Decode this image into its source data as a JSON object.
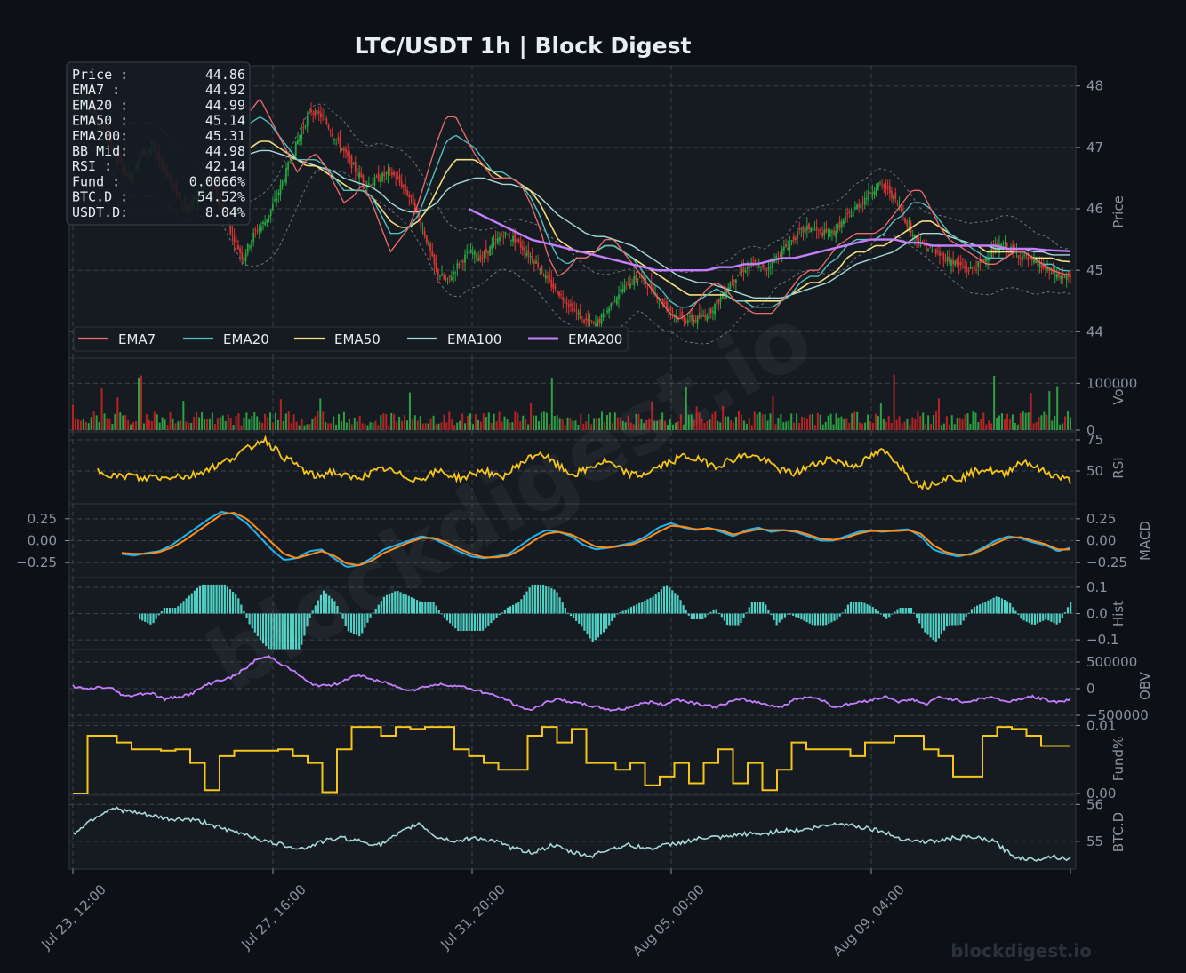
{
  "title": "LTC/USDT  1h  |  Block Digest",
  "watermark": "blockdigest.io",
  "info_box": [
    {
      "label": "Price :",
      "value": "44.86"
    },
    {
      "label": "EMA7  :",
      "value": "44.92"
    },
    {
      "label": "EMA20 :",
      "value": "44.99"
    },
    {
      "label": "EMA50 :",
      "value": "45.14"
    },
    {
      "label": "EMA200:",
      "value": "45.31"
    },
    {
      "label": "BB Mid:",
      "value": "44.98"
    },
    {
      "label": "RSI   :",
      "value": "42.14"
    },
    {
      "label": "Fund  :",
      "value": "0.0066%"
    },
    {
      "label": "BTC.D :",
      "value": "54.52%"
    },
    {
      "label": "USDT.D:",
      "value": "8.04%"
    }
  ],
  "colors": {
    "background": "#0d1117",
    "panel": "#161b22",
    "grid": "#30363d",
    "up": "#26a641",
    "down": "#da3633",
    "ema7": "#f26b6b",
    "ema20": "#4fc1c1",
    "ema50": "#f5e07a",
    "ema100": "#a8d8d8",
    "ema200": "#c77dff",
    "rsi": "#f5c518",
    "macd": "#1fb3f0",
    "signal": "#ff8c1a",
    "hist": "#4fd1c5",
    "obv": "#c77dff",
    "fund": "#f5c518",
    "btcd": "#a8d8d8"
  },
  "chart_data": {
    "type": "line",
    "x_ticks": [
      "Jul 23, 12:00",
      "Jul 27, 16:00",
      "Jul 31, 20:00",
      "Aug 05, 00:00",
      "Aug 09, 04:00"
    ],
    "panels": [
      {
        "id": "price",
        "ylabel": "Price",
        "ylim": [
          43.6,
          48.3
        ],
        "yticks": [
          "44",
          "45",
          "46",
          "47",
          "48"
        ],
        "ytick_values": [
          44,
          45,
          46,
          47,
          48
        ],
        "legend": [
          "EMA7",
          "EMA20",
          "EMA50",
          "EMA100",
          "EMA200"
        ],
        "legend_position": "bottom-left",
        "series_close": [
          47.7,
          47.9,
          47.5,
          47.2,
          46.8,
          46.5,
          46.9,
          47.0,
          46.7,
          46.3,
          46.0,
          46.2,
          46.5,
          46.1,
          45.6,
          45.2,
          45.6,
          45.8,
          46.2,
          46.7,
          47.2,
          47.6,
          47.5,
          47.2,
          46.9,
          46.6,
          46.4,
          46.5,
          46.6,
          46.4,
          46.1,
          45.6,
          45.0,
          44.8,
          45.1,
          45.3,
          45.2,
          45.4,
          45.6,
          45.5,
          45.3,
          45.1,
          44.8,
          44.6,
          44.4,
          44.2,
          44.1,
          44.3,
          44.6,
          44.8,
          44.9,
          44.7,
          44.5,
          44.3,
          44.2,
          44.2,
          44.3,
          44.5,
          44.8,
          45.0,
          45.1,
          45.0,
          45.2,
          45.4,
          45.6,
          45.7,
          45.6,
          45.6,
          45.8,
          46.0,
          46.2,
          46.4,
          46.3,
          46.0,
          45.6,
          45.4,
          45.3,
          45.2,
          45.1,
          45.0,
          45.1,
          45.3,
          45.4,
          45.3,
          45.2,
          45.1,
          45.0,
          44.9,
          44.86
        ],
        "ema7": [
          47.6,
          47.8,
          47.5,
          47.2,
          46.9,
          46.6,
          46.8,
          46.9,
          46.7,
          46.4,
          46.1,
          46.2,
          46.4,
          46.1,
          45.7,
          45.3,
          45.5,
          45.7,
          46.1,
          46.6,
          47.1,
          47.5,
          47.5,
          47.2,
          46.9,
          46.7,
          46.5,
          46.5,
          46.5,
          46.4,
          46.1,
          45.7,
          45.2,
          44.9,
          45.0,
          45.2,
          45.2,
          45.3,
          45.5,
          45.5,
          45.3,
          45.1,
          44.9,
          44.7,
          44.5,
          44.3,
          44.2,
          44.3,
          44.5,
          44.7,
          44.8,
          44.7,
          44.5,
          44.4,
          44.3,
          44.3,
          44.3,
          44.5,
          44.7,
          44.9,
          45.0,
          45.0,
          45.2,
          45.4,
          45.5,
          45.6,
          45.6,
          45.6,
          45.7,
          45.9,
          46.1,
          46.3,
          46.3,
          46.0,
          45.7,
          45.5,
          45.4,
          45.3,
          45.2,
          45.1,
          45.1,
          45.2,
          45.3,
          45.3,
          45.2,
          45.1,
          45.0,
          44.95,
          44.92
        ],
        "ema20": [
          47.4,
          47.5,
          47.4,
          47.2,
          47.0,
          46.8,
          46.8,
          46.8,
          46.7,
          46.5,
          46.3,
          46.3,
          46.3,
          46.2,
          45.9,
          45.6,
          45.6,
          45.7,
          45.9,
          46.3,
          46.7,
          47.1,
          47.2,
          47.1,
          47.0,
          46.8,
          46.6,
          46.6,
          46.5,
          46.4,
          46.2,
          45.9,
          45.5,
          45.2,
          45.1,
          45.2,
          45.2,
          45.3,
          45.4,
          45.4,
          45.3,
          45.2,
          45.0,
          44.8,
          44.7,
          44.5,
          44.4,
          44.4,
          44.5,
          44.6,
          44.7,
          44.6,
          44.5,
          44.5,
          44.4,
          44.4,
          44.4,
          44.5,
          44.6,
          44.8,
          44.9,
          44.9,
          45.1,
          45.2,
          45.4,
          45.5,
          45.5,
          45.5,
          45.6,
          45.8,
          45.9,
          46.1,
          46.1,
          46.0,
          45.8,
          45.6,
          45.5,
          45.4,
          45.3,
          45.2,
          45.2,
          45.2,
          45.3,
          45.3,
          45.2,
          45.1,
          45.1,
          45.0,
          44.99
        ],
        "ema50": [
          47.0,
          47.1,
          47.1,
          47.0,
          46.9,
          46.8,
          46.7,
          46.7,
          46.6,
          46.5,
          46.4,
          46.3,
          46.3,
          46.2,
          46.0,
          45.8,
          45.7,
          45.7,
          45.8,
          46.0,
          46.3,
          46.6,
          46.8,
          46.8,
          46.8,
          46.7,
          46.6,
          46.5,
          46.5,
          46.4,
          46.3,
          46.1,
          45.8,
          45.5,
          45.4,
          45.3,
          45.3,
          45.3,
          45.4,
          45.4,
          45.3,
          45.2,
          45.1,
          45.0,
          44.9,
          44.8,
          44.7,
          44.6,
          44.6,
          44.6,
          44.6,
          44.6,
          44.5,
          44.5,
          44.5,
          44.5,
          44.5,
          44.5,
          44.6,
          44.7,
          44.8,
          44.8,
          44.9,
          45.0,
          45.2,
          45.3,
          45.3,
          45.4,
          45.4,
          45.5,
          45.6,
          45.7,
          45.8,
          45.8,
          45.7,
          45.6,
          45.5,
          45.4,
          45.4,
          45.3,
          45.3,
          45.3,
          45.3,
          45.3,
          45.2,
          45.2,
          45.2,
          45.15,
          45.14
        ],
        "ema100": [
          46.9,
          46.95,
          46.95,
          46.9,
          46.85,
          46.8,
          46.75,
          46.7,
          46.65,
          46.6,
          46.5,
          46.45,
          46.4,
          46.35,
          46.25,
          46.1,
          46.0,
          45.95,
          45.95,
          46.0,
          46.1,
          46.3,
          46.4,
          46.45,
          46.5,
          46.5,
          46.45,
          46.4,
          46.4,
          46.35,
          46.3,
          46.2,
          46.05,
          45.9,
          45.8,
          45.7,
          45.6,
          45.55,
          45.55,
          45.5,
          45.45,
          45.4,
          45.3,
          45.2,
          45.1,
          45.0,
          44.9,
          44.85,
          44.8,
          44.8,
          44.75,
          44.7,
          44.65,
          44.6,
          44.55,
          44.55,
          44.55,
          44.55,
          44.6,
          44.65,
          44.7,
          44.75,
          44.8,
          44.9,
          45.0,
          45.1,
          45.15,
          45.2,
          45.25,
          45.3,
          45.4,
          45.5,
          45.6,
          45.6,
          45.6,
          45.55,
          45.5,
          45.45,
          45.4,
          45.4,
          45.35,
          45.35,
          45.35,
          45.35,
          45.3,
          45.3,
          45.25,
          45.25,
          45.25
        ],
        "ema200_start_index": 40,
        "ema200": [
          46.0,
          45.9,
          45.8,
          45.7,
          45.6,
          45.5,
          45.45,
          45.4,
          45.35,
          45.3,
          45.25,
          45.2,
          45.15,
          45.1,
          45.05,
          45.0,
          45.0,
          45.0,
          45.0,
          45.0,
          45.05,
          45.05,
          45.1,
          45.1,
          45.15,
          45.2,
          45.2,
          45.25,
          45.3,
          45.35,
          45.4,
          45.45,
          45.5,
          45.5,
          45.5,
          45.45,
          45.45,
          45.4,
          45.4,
          45.4,
          45.4,
          45.4,
          45.4,
          45.35,
          45.35,
          45.35,
          45.33,
          45.32,
          45.31
        ]
      },
      {
        "id": "volume",
        "ylabel": "Vol",
        "ylim": [
          0,
          150000
        ],
        "yticks": [
          "0",
          "100000"
        ],
        "ytick_values": [
          0,
          100000
        ]
      },
      {
        "id": "rsi",
        "ylabel": "RSI",
        "ylim": [
          25,
          80
        ],
        "yticks": [
          "50",
          "75"
        ],
        "ytick_values": [
          50,
          75
        ],
        "values": [
          50,
          48,
          45,
          47,
          43,
          46,
          44,
          47,
          45,
          48,
          52,
          55,
          60,
          65,
          70,
          76,
          68,
          60,
          55,
          48,
          45,
          50,
          47,
          44,
          46,
          49,
          52,
          48,
          45,
          43,
          47,
          50,
          46,
          44,
          48,
          51,
          45,
          47,
          55,
          60,
          65,
          58,
          52,
          47,
          50,
          55,
          58,
          52,
          48,
          46,
          50,
          54,
          58,
          62,
          60,
          57,
          54,
          58,
          61,
          63,
          60,
          55,
          50,
          48,
          52,
          56,
          60,
          58,
          54,
          56,
          62,
          66,
          60,
          50,
          40,
          38,
          42,
          45,
          44,
          48,
          52,
          50,
          47,
          55,
          58,
          52,
          48,
          45,
          42
        ]
      },
      {
        "id": "macd",
        "ylabel": "MACD",
        "ylim": [
          -0.4,
          0.4
        ],
        "yticks": [
          "−0.25",
          "0.00",
          "0.25"
        ],
        "ytick_values": [
          -0.25,
          0,
          0.25
        ],
        "macd": [
          -0.15,
          -0.17,
          -0.14,
          -0.12,
          -0.05,
          0.05,
          0.15,
          0.25,
          0.33,
          0.3,
          0.2,
          0.05,
          -0.1,
          -0.22,
          -0.2,
          -0.12,
          -0.1,
          -0.2,
          -0.3,
          -0.28,
          -0.2,
          -0.1,
          -0.05,
          0.0,
          0.05,
          0.02,
          -0.05,
          -0.12,
          -0.18,
          -0.2,
          -0.18,
          -0.15,
          -0.05,
          0.05,
          0.12,
          0.1,
          0.05,
          -0.05,
          -0.1,
          -0.08,
          -0.05,
          -0.02,
          0.05,
          0.15,
          0.2,
          0.15,
          0.12,
          0.15,
          0.1,
          0.05,
          0.12,
          0.15,
          0.1,
          0.12,
          0.1,
          0.05,
          0.0,
          0.0,
          0.05,
          0.1,
          0.12,
          0.1,
          0.12,
          0.13,
          0.05,
          -0.1,
          -0.15,
          -0.18,
          -0.15,
          -0.08,
          0.0,
          0.05,
          0.03,
          -0.02,
          -0.05,
          -0.12,
          -0.08
        ],
        "signal": [
          -0.14,
          -0.15,
          -0.15,
          -0.13,
          -0.08,
          0.0,
          0.1,
          0.2,
          0.3,
          0.32,
          0.25,
          0.12,
          -0.02,
          -0.15,
          -0.2,
          -0.16,
          -0.12,
          -0.17,
          -0.26,
          -0.28,
          -0.23,
          -0.14,
          -0.08,
          -0.02,
          0.03,
          0.03,
          -0.02,
          -0.09,
          -0.15,
          -0.19,
          -0.19,
          -0.17,
          -0.1,
          0.0,
          0.08,
          0.1,
          0.07,
          0.0,
          -0.07,
          -0.08,
          -0.06,
          -0.04,
          0.02,
          0.1,
          0.17,
          0.16,
          0.13,
          0.14,
          0.12,
          0.07,
          0.1,
          0.13,
          0.12,
          0.12,
          0.11,
          0.07,
          0.02,
          0.01,
          0.03,
          0.08,
          0.11,
          0.11,
          0.11,
          0.12,
          0.08,
          -0.05,
          -0.13,
          -0.16,
          -0.16,
          -0.1,
          -0.03,
          0.03,
          0.04,
          0.0,
          -0.04,
          -0.1,
          -0.1
        ]
      },
      {
        "id": "hist",
        "ylabel": "Hist",
        "ylim": [
          -0.13,
          0.13
        ],
        "yticks": [
          "−0.1",
          "0.0",
          "0.1"
        ],
        "ytick_values": [
          -0.1,
          0,
          0.1
        ]
      },
      {
        "id": "obv",
        "ylabel": "OBV",
        "ylim": [
          -600000,
          700000
        ],
        "yticks": [
          "−500000",
          "0",
          "500000"
        ],
        "ytick_values": [
          -500000,
          0,
          500000
        ],
        "values": [
          50000,
          -20000,
          30000,
          0,
          -150000,
          -100000,
          -80000,
          -200000,
          -150000,
          -100000,
          50000,
          150000,
          200000,
          350000,
          550000,
          600000,
          450000,
          300000,
          100000,
          50000,
          80000,
          200000,
          250000,
          150000,
          100000,
          0,
          -20000,
          50000,
          80000,
          60000,
          20000,
          -50000,
          -120000,
          -200000,
          -350000,
          -400000,
          -250000,
          -200000,
          -250000,
          -300000,
          -350000,
          -400000,
          -380000,
          -300000,
          -250000,
          -300000,
          -200000,
          -250000,
          -300000,
          -350000,
          -250000,
          -200000,
          -250000,
          -300000,
          -350000,
          -200000,
          -150000,
          -200000,
          -350000,
          -300000,
          -250000,
          -200000,
          -150000,
          -250000,
          -200000,
          -300000,
          -150000,
          -200000,
          -250000,
          -200000,
          -150000,
          -250000,
          -200000,
          -150000,
          -200000,
          -250000,
          -200000
        ]
      },
      {
        "id": "fund",
        "ylabel": "Fund%",
        "ylim": [
          0,
          0.0102
        ],
        "yticks": [
          "0.00",
          "0.01"
        ],
        "ytick_values": [
          0,
          0.01
        ],
        "values": [
          0.0,
          0.0085,
          0.0085,
          0.0075,
          0.0065,
          0.0065,
          0.0063,
          0.0065,
          0.0045,
          0.0005,
          0.0055,
          0.0063,
          0.0063,
          0.0063,
          0.0065,
          0.0055,
          0.0045,
          0.0002,
          0.0065,
          0.0098,
          0.0098,
          0.0085,
          0.0098,
          0.0095,
          0.0098,
          0.0098,
          0.0065,
          0.0055,
          0.0045,
          0.0035,
          0.0035,
          0.0085,
          0.0098,
          0.0075,
          0.0095,
          0.0045,
          0.0045,
          0.0035,
          0.0045,
          0.0012,
          0.0025,
          0.0045,
          0.0015,
          0.0045,
          0.0065,
          0.0015,
          0.0045,
          0.0005,
          0.0035,
          0.0075,
          0.0065,
          0.0065,
          0.0065,
          0.0055,
          0.0075,
          0.0075,
          0.0085,
          0.0085,
          0.0065,
          0.0055,
          0.0025,
          0.0025,
          0.0085,
          0.0098,
          0.0095,
          0.0085,
          0.007,
          0.007
        ]
      },
      {
        "id": "btcd",
        "ylabel": "BTC.D",
        "ylim": [
          54.3,
          56.2
        ],
        "yticks": [
          "55",
          "56"
        ],
        "ytick_values": [
          55,
          56
        ],
        "values": [
          55.2,
          55.6,
          55.9,
          55.8,
          55.7,
          55.6,
          55.6,
          55.5,
          55.3,
          55.2,
          55.0,
          54.9,
          54.8,
          55.0,
          55.1,
          55.0,
          54.9,
          55.2,
          55.5,
          55.1,
          55.0,
          55.1,
          55.0,
          54.8,
          54.7,
          54.9,
          54.7,
          54.6,
          54.8,
          54.9,
          54.8,
          54.9,
          55.0,
          55.1,
          55.1,
          55.2,
          55.2,
          55.3,
          55.3,
          55.4,
          55.5,
          55.4,
          55.3,
          55.1,
          55.0,
          55.0,
          55.1,
          55.1,
          55.0,
          54.6,
          54.5,
          54.6,
          54.52
        ]
      }
    ]
  }
}
